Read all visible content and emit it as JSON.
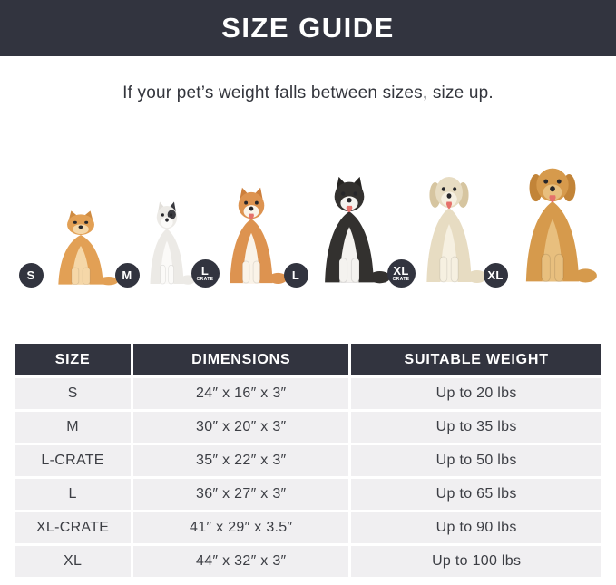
{
  "banner": {
    "title": "SIZE GUIDE"
  },
  "subtitle": "If your pet’s weight falls between sizes, size up.",
  "colors": {
    "dark": "#32343f",
    "row_bg": "#f0eff1",
    "cell_text": "#3c3e44",
    "badge_bg": "#32343f"
  },
  "dogs": [
    {
      "breed": "pomeranian",
      "badge": "S",
      "badge_sub": "",
      "ears": "pointy",
      "tongue": false,
      "body": "#e2a055",
      "accent": "#f5d7a8",
      "ear": "#cf8b41",
      "patch": "",
      "fig_w": 88,
      "fig_h": 88
    },
    {
      "breed": "french-bulldog",
      "badge": "M",
      "badge_sub": "",
      "ears": "pointy",
      "tongue": false,
      "body": "#eceae6",
      "accent": "#fbfaf8",
      "ear": "#e2dfda",
      "patch": "#3a3a40",
      "fig_w": 66,
      "fig_h": 98
    },
    {
      "breed": "shiba-inu",
      "badge": "L",
      "badge_sub": "CRATE",
      "ears": "pointy",
      "tongue": true,
      "body": "#dd9350",
      "accent": "#faf3e8",
      "ear": "#cd7f3c",
      "patch": "",
      "fig_w": 84,
      "fig_h": 114
    },
    {
      "breed": "border-collie",
      "badge": "L",
      "badge_sub": "",
      "ears": "pointy",
      "tongue": true,
      "body": "#33312f",
      "accent": "#f4f2ef",
      "ear": "#262422",
      "patch": "",
      "fig_w": 96,
      "fig_h": 126
    },
    {
      "breed": "labrador",
      "badge": "XL",
      "badge_sub": "CRATE",
      "ears": "floppy",
      "tongue": true,
      "body": "#e7dcc2",
      "accent": "#f6f0e1",
      "ear": "#d6c5a0",
      "patch": "",
      "fig_w": 88,
      "fig_h": 132
    },
    {
      "breed": "golden-retriever",
      "badge": "XL",
      "badge_sub": "",
      "ears": "floppy",
      "tongue": true,
      "body": "#d69a4c",
      "accent": "#e8bf7e",
      "ear": "#c28438",
      "patch": "",
      "fig_w": 104,
      "fig_h": 142
    }
  ],
  "table": {
    "columns": [
      "SIZE",
      "DIMENSIONS",
      "SUITABLE WEIGHT"
    ],
    "rows": [
      {
        "size": "S",
        "dimensions": "24″ x 16″ x 3″",
        "weight": "Up to 20 lbs"
      },
      {
        "size": "M",
        "dimensions": "30″ x 20″ x 3″",
        "weight": "Up to 35 lbs"
      },
      {
        "size": "L-CRATE",
        "dimensions": "35″ x 22″ x 3″",
        "weight": "Up to 50 lbs"
      },
      {
        "size": "L",
        "dimensions": "36″ x 27″ x 3″",
        "weight": "Up to 65 lbs"
      },
      {
        "size": "XL-CRATE",
        "dimensions": "41″ x 29″ x 3.5″",
        "weight": "Up to 90 lbs"
      },
      {
        "size": "XL",
        "dimensions": "44″ x 32″ x 3″",
        "weight": "Up to 100 lbs"
      }
    ]
  }
}
